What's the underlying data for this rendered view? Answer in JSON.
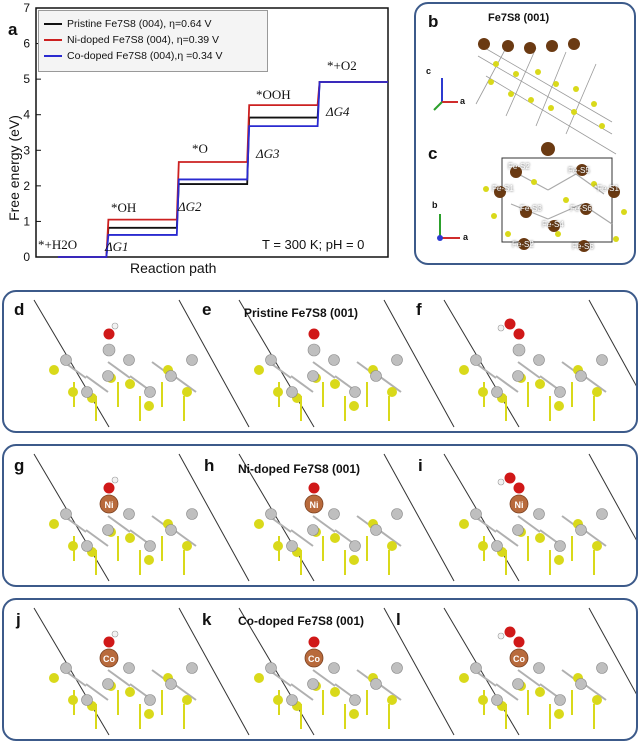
{
  "panel_a": {
    "letter": "a",
    "legend": [
      {
        "name": "Pristine Fe7S8 (004), η=0.64 V",
        "color": "#111111"
      },
      {
        "name": "Ni-doped Fe7S8 (004), η=0.39 V",
        "color": "#cc2020"
      },
      {
        "name": "Co-doped Fe7S8 (004),η =0.34 V",
        "color": "#2a2ad0"
      }
    ],
    "condition_text": "T = 300 K; pH = 0",
    "step_labels": [
      "*+H2O",
      "*OH",
      "*O",
      "*OOH",
      "*+O2"
    ],
    "dg_labels": [
      "ΔG1",
      "ΔG2",
      "ΔG3",
      "ΔG4"
    ]
  },
  "chart_data": {
    "type": "line",
    "title": "",
    "xlabel": "Reaction path",
    "ylabel": "Free energy (eV)",
    "ylim": [
      0,
      7
    ],
    "yticks": [
      0,
      1,
      2,
      3,
      4,
      5,
      6,
      7
    ],
    "categories": [
      "*+H2O",
      "*OH",
      "*O",
      "*OOH",
      "*+O2"
    ],
    "series": [
      {
        "name": "Pristine Fe7S8 (004), η=0.64 V",
        "values": [
          0,
          0.82,
          2.05,
          3.92,
          4.92
        ]
      },
      {
        "name": "Ni-doped Fe7S8 (004), η=0.39 V",
        "values": [
          0,
          1.05,
          2.67,
          4.27,
          4.92
        ]
      },
      {
        "name": "Co-doped Fe7S8 (004),η =0.34 V",
        "values": [
          0,
          0.62,
          2.18,
          3.68,
          4.92
        ]
      }
    ]
  },
  "panel_bc": {
    "letter_b": "b",
    "letter_c": "c",
    "title_b": "Fe7S8 (001)",
    "axis_c": "c",
    "axis_a": "a",
    "axis_b": "b",
    "site_labels": [
      "Fe-S2",
      "Fe-S5",
      "Fe-S1",
      "*Fe-S1",
      "Fe-S3",
      "Fe-S6",
      "Fe-S4",
      "Fe-S2",
      "Fe-S6"
    ]
  },
  "row_pristine": {
    "letters": [
      "d",
      "e",
      "f"
    ],
    "title": "Pristine Fe7S8 (001)"
  },
  "row_ni": {
    "letters": [
      "g",
      "h",
      "i"
    ],
    "title": "Ni-doped Fe7S8 (001)",
    "dopant": "Ni"
  },
  "row_co": {
    "letters": [
      "j",
      "k",
      "l"
    ],
    "title": "Co-doped Fe7S8 (001)",
    "dopant": "Co"
  },
  "colors": {
    "frame": "#3c5a8a",
    "sulfur": "#d9d91a",
    "iron": "#bfbfbf",
    "fe_brown": "#6b3a12",
    "oxygen": "#d01818",
    "hydrogen": "#f2f2f2",
    "dopant": "#b86a3c"
  }
}
